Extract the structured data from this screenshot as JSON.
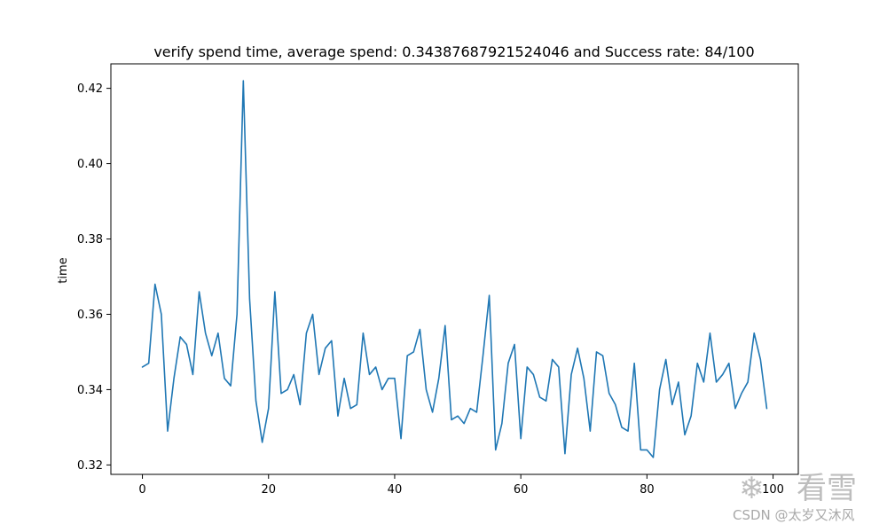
{
  "chart_data": {
    "type": "line",
    "title": "verify spend time, average spend: 0.34387687921524046 and Success rate: 84/100",
    "xlabel": "",
    "ylabel": "time",
    "xlim": [
      -5,
      104
    ],
    "ylim": [
      0.3175,
      0.4265
    ],
    "xticks": [
      0,
      20,
      40,
      60,
      80,
      100
    ],
    "xtick_labels": [
      "0",
      "20",
      "40",
      "60",
      "80",
      "100"
    ],
    "yticks": [
      0.32,
      0.34,
      0.36,
      0.38,
      0.4,
      0.42
    ],
    "ytick_labels": [
      "0.32",
      "0.34",
      "0.36",
      "0.38",
      "0.40",
      "0.42"
    ],
    "grid": false,
    "line_color": "#1f77b4",
    "series": [
      {
        "x": [
          0,
          1,
          2,
          3,
          4,
          5,
          6,
          7,
          8,
          9,
          10,
          11,
          12,
          13,
          14,
          15,
          16,
          17,
          18,
          19,
          20,
          21,
          22,
          23,
          24,
          25,
          26,
          27,
          28,
          29,
          30,
          31,
          32,
          33,
          34,
          35,
          36,
          37,
          38,
          39,
          40,
          41,
          42,
          43,
          44,
          45,
          46,
          47,
          48,
          49,
          50,
          51,
          52,
          53,
          54,
          55,
          56,
          57,
          58,
          59,
          60,
          61,
          62,
          63,
          64,
          65,
          66,
          67,
          68,
          69,
          70,
          71,
          72,
          73,
          74,
          75,
          76,
          77,
          78,
          79,
          80,
          81,
          82,
          83,
          84,
          85,
          86,
          87,
          88,
          89,
          90,
          91,
          92,
          93,
          94,
          95,
          96,
          97,
          98,
          99
        ],
        "values": [
          0.346,
          0.347,
          0.368,
          0.36,
          0.329,
          0.343,
          0.354,
          0.352,
          0.344,
          0.366,
          0.355,
          0.349,
          0.355,
          0.343,
          0.341,
          0.36,
          0.422,
          0.364,
          0.337,
          0.326,
          0.335,
          0.366,
          0.339,
          0.34,
          0.344,
          0.336,
          0.355,
          0.36,
          0.344,
          0.351,
          0.353,
          0.333,
          0.343,
          0.335,
          0.336,
          0.355,
          0.344,
          0.346,
          0.34,
          0.343,
          0.343,
          0.327,
          0.349,
          0.35,
          0.356,
          0.34,
          0.334,
          0.343,
          0.357,
          0.332,
          0.333,
          0.331,
          0.335,
          0.334,
          0.349,
          0.365,
          0.324,
          0.331,
          0.347,
          0.352,
          0.327,
          0.346,
          0.344,
          0.338,
          0.337,
          0.348,
          0.346,
          0.323,
          0.344,
          0.351,
          0.343,
          0.329,
          0.35,
          0.349,
          0.339,
          0.336,
          0.33,
          0.329,
          0.347,
          0.324,
          0.324,
          0.322,
          0.34,
          0.348,
          0.336,
          0.342,
          0.328,
          0.333,
          0.347,
          0.342,
          0.355,
          0.342,
          0.344,
          0.347,
          0.335,
          0.339,
          0.342,
          0.355,
          0.348,
          0.335
        ]
      }
    ]
  },
  "watermark": {
    "logo_text": "看雪",
    "text": "CSDN @太岁又沐风"
  }
}
